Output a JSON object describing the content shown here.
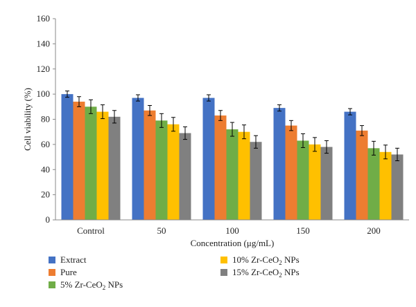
{
  "chart_data": {
    "type": "bar",
    "title": "",
    "xlabel": "Concentration (μg/mL)",
    "ylabel": "Cell viability (%)",
    "ylim": [
      0,
      160
    ],
    "yticks": [
      0,
      20,
      40,
      60,
      80,
      100,
      120,
      140,
      160
    ],
    "grid": false,
    "legend_position": "bottom",
    "categories": [
      "Control",
      "50",
      "100",
      "150",
      "200"
    ],
    "series": [
      {
        "name": "Extract",
        "legend_parts": [
          "Extract"
        ],
        "color": "#4472C4",
        "values": [
          100,
          97,
          97,
          89,
          86
        ],
        "errors": [
          2.5,
          2.5,
          2.5,
          2.5,
          2.5
        ]
      },
      {
        "name": "Pure",
        "legend_parts": [
          "Pure"
        ],
        "color": "#ED7D31",
        "values": [
          94,
          87,
          83,
          75,
          71
        ],
        "errors": [
          4,
          4,
          4,
          4,
          4
        ]
      },
      {
        "name": "5% Zr-CeO2 NPs",
        "legend_parts": [
          "5% Zr-CeO",
          "2",
          " NPs"
        ],
        "color": "#70AD47",
        "values": [
          90,
          79,
          72,
          63,
          57
        ],
        "errors": [
          5.5,
          5.5,
          5.5,
          5.5,
          5.5
        ]
      },
      {
        "name": "10% Zr-CeO2 NPs",
        "legend_parts": [
          "10% Zr-CeO",
          "2",
          " NPs"
        ],
        "color": "#FFC000",
        "values": [
          86,
          76,
          70,
          60,
          54
        ],
        "errors": [
          5.5,
          5.5,
          5.5,
          5.5,
          5.5
        ]
      },
      {
        "name": "15% Zr-CeO2 NPs",
        "legend_parts": [
          "15% Zr-CeO",
          "2",
          " NPs"
        ],
        "color": "#808080",
        "values": [
          82,
          69,
          62,
          58,
          52
        ],
        "errors": [
          5,
          5,
          5,
          5,
          5
        ]
      }
    ]
  }
}
